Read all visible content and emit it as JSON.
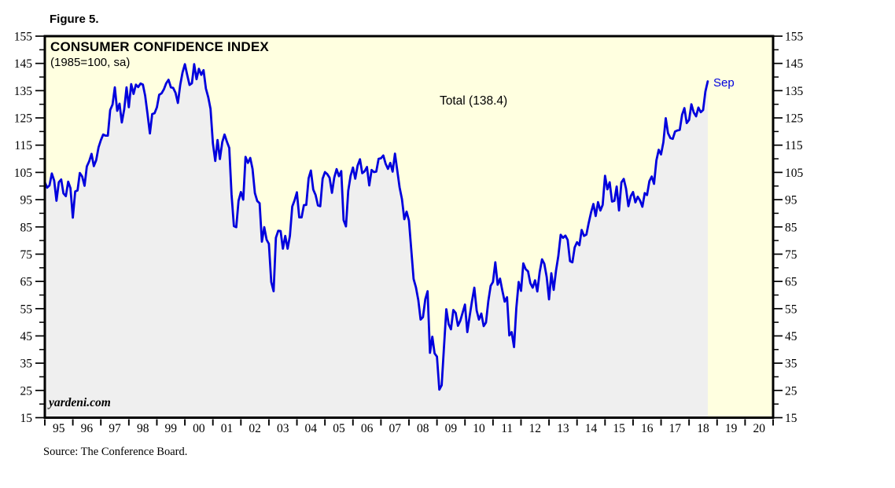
{
  "figure_label": "Figure 5.",
  "source": "Source: The Conference Board.",
  "chart": {
    "title": "CONSUMER CONFIDENCE INDEX",
    "subtitle": "(1985=100, sa)",
    "series_label": "Total (138.4)",
    "latest_label": "Sep",
    "watermark": "yardeni.com",
    "colors": {
      "line": "#0000DD",
      "plot_bg": "#FFFFE0",
      "area_fill": "#EFEFEF",
      "frame": "#000000"
    }
  },
  "chart_data": {
    "type": "line",
    "title": "CONSUMER CONFIDENCE INDEX",
    "subtitle": "(1985=100, sa)",
    "xlabel": "",
    "ylabel": "",
    "ylim": [
      15,
      155
    ],
    "y_ticks": [
      155,
      145,
      135,
      125,
      115,
      105,
      95,
      85,
      75,
      65,
      55,
      45,
      35,
      25,
      15
    ],
    "y_minor_step": 5,
    "x_axis_years": [
      "95",
      "96",
      "97",
      "98",
      "99",
      "00",
      "01",
      "02",
      "03",
      "04",
      "05",
      "06",
      "07",
      "08",
      "09",
      "10",
      "11",
      "12",
      "13",
      "14",
      "15",
      "16",
      "17",
      "18",
      "19",
      "20"
    ],
    "x_range_note": "monthly data from Jan 1995 through Sep 2018, x axis drawn to end of 2020",
    "legend_position": "none",
    "grid": false,
    "series": [
      {
        "name": "Total",
        "latest_month": "Sep",
        "latest_value": 138.4,
        "start": "1995-01",
        "end": "2018-09",
        "monthly_values": [
          101.4,
          99.4,
          100.2,
          104.6,
          102.0,
          94.6,
          101.4,
          102.4,
          97.3,
          96.3,
          101.6,
          99.2,
          88.4,
          98.0,
          98.4,
          104.8,
          103.5,
          100.1,
          107.2,
          109.1,
          111.8,
          107.3,
          109.5,
          114.2,
          116.8,
          118.9,
          118.5,
          118.5,
          127.9,
          129.9,
          136.2,
          127.6,
          130.2,
          123.3,
          128.1,
          136.2,
          128.9,
          137.4,
          133.8,
          137.2,
          136.3,
          137.6,
          137.2,
          133.1,
          126.4,
          119.3,
          126.4,
          126.7,
          128.9,
          133.5,
          134.0,
          135.5,
          137.7,
          139.0,
          136.2,
          136.0,
          134.2,
          130.5,
          137.0,
          141.7,
          144.7,
          140.8,
          137.1,
          137.7,
          144.7,
          139.2,
          143.0,
          140.8,
          142.5,
          135.8,
          132.6,
          128.3,
          115.7,
          109.2,
          116.9,
          109.9,
          116.1,
          118.9,
          116.3,
          114.0,
          97.0,
          85.3,
          84.9,
          94.6,
          97.8,
          95.0,
          110.7,
          108.5,
          110.3,
          106.3,
          97.4,
          94.5,
          93.7,
          79.6,
          84.9,
          80.3,
          78.8,
          64.8,
          61.4,
          81.0,
          83.6,
          83.5,
          77.0,
          81.7,
          77.0,
          81.7,
          92.5,
          94.8,
          97.7,
          88.5,
          88.5,
          93.0,
          93.1,
          102.8,
          105.7,
          98.7,
          96.7,
          92.9,
          92.6,
          102.7,
          105.1,
          104.4,
          103.0,
          97.5,
          103.1,
          106.2,
          103.6,
          105.5,
          87.5,
          85.2,
          98.3,
          103.8,
          106.8,
          102.7,
          107.5,
          109.8,
          104.7,
          105.4,
          107.0,
          100.2,
          105.9,
          105.1,
          105.3,
          110.0,
          110.2,
          111.2,
          108.2,
          106.3,
          108.5,
          105.3,
          111.9,
          105.6,
          99.5,
          95.2,
          87.8,
          90.6,
          87.3,
          76.4,
          65.9,
          62.8,
          58.1,
          51.0,
          51.9,
          58.5,
          61.4,
          38.8,
          44.7,
          38.6,
          37.4,
          25.3,
          26.9,
          40.8,
          54.8,
          49.3,
          47.4,
          54.5,
          53.4,
          48.7,
          50.6,
          53.6,
          56.5,
          46.4,
          52.3,
          57.7,
          62.7,
          54.3,
          51.0,
          53.2,
          48.6,
          49.9,
          57.8,
          63.4,
          64.8,
          72.0,
          63.8,
          66.0,
          61.7,
          57.6,
          59.2,
          45.2,
          46.4,
          40.9,
          55.2,
          64.8,
          61.5,
          71.6,
          69.5,
          68.7,
          64.4,
          62.7,
          65.4,
          61.3,
          68.4,
          73.1,
          71.5,
          66.7,
          58.4,
          68.0,
          61.9,
          69.0,
          74.3,
          82.1,
          81.0,
          81.8,
          80.2,
          72.4,
          72.0,
          77.5,
          79.4,
          78.3,
          83.9,
          81.7,
          82.2,
          86.4,
          90.3,
          93.4,
          89.0,
          94.1,
          91.0,
          93.1,
          103.8,
          98.8,
          101.4,
          94.3,
          94.6,
          99.8,
          91.0,
          101.3,
          102.6,
          99.1,
          92.6,
          96.3,
          97.8,
          94.0,
          96.1,
          94.7,
          92.4,
          97.4,
          96.7,
          101.8,
          103.5,
          100.8,
          109.4,
          113.3,
          111.6,
          116.1,
          124.9,
          119.4,
          117.6,
          117.3,
          120.0,
          120.4,
          120.6,
          126.2,
          128.6,
          123.1,
          124.3,
          130.0,
          127.0,
          125.6,
          128.8,
          127.1,
          127.9,
          134.7,
          138.4
        ]
      }
    ]
  }
}
